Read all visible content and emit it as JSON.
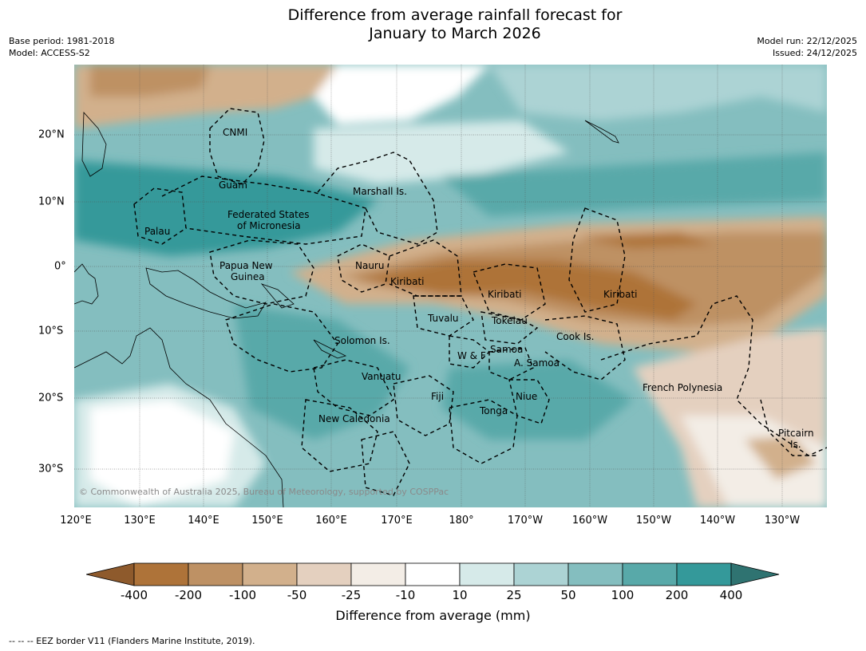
{
  "title_line1": "Difference from average rainfall forecast for",
  "title_line2": "January to March 2026",
  "base_period": "Base period: 1981-2018",
  "model": "Model: ACCESS-S2",
  "model_run": "Model run: 22/12/2025",
  "issued": "Issued: 24/12/2025",
  "lat_ticks": [
    "20°N",
    "10°N",
    "0°",
    "10°S",
    "20°S",
    "30°S"
  ],
  "lon_ticks": [
    "120°E",
    "130°E",
    "140°E",
    "150°E",
    "160°E",
    "170°E",
    "180°",
    "170°W",
    "160°W",
    "150°W",
    "140°W",
    "130°W"
  ],
  "places": {
    "cnmi": "CNMI",
    "guam": "Guam",
    "marshall": "Marshall Is.",
    "fsm_1": "Federated States",
    "fsm_2": "of Micronesia",
    "palau": "Palau",
    "png_1": "Papua New",
    "png_2": "Guinea",
    "nauru": "Nauru",
    "kiribati_w": "Kiribati",
    "kiribati_c": "Kiribati",
    "kiribati_e": "Kiribati",
    "tuvalu": "Tuvalu",
    "tokelau": "Tokelau",
    "cook": "Cook Is.",
    "solomon": "Solomon Is.",
    "wf": "W & F",
    "samoa": "Samoa",
    "asamoa": "A. Samoa",
    "vanuatu": "Vanuatu",
    "fiji": "Fiji",
    "niue": "Niue",
    "tonga": "Tonga",
    "newcal": "New Caledonia",
    "frpoly": "French Polynesia",
    "pitcairn_1": "Pitcairn",
    "pitcairn_2": "Is."
  },
  "copyright": "© Commonwealth of Australia 2025, Bureau of Meteorology, supported by COSPPac",
  "colorbar": {
    "labels": [
      "-400",
      "-200",
      "-100",
      "-50",
      "-25",
      "-10",
      "10",
      "25",
      "50",
      "100",
      "200",
      "400"
    ],
    "colors": [
      "#8e5a2c",
      "#ae7339",
      "#be9164",
      "#d2b08c",
      "#e4d0bf",
      "#f3ede6",
      "#ffffff",
      "#d6eae9",
      "#acd3d4",
      "#84bebf",
      "#58a9a9",
      "#34999a",
      "#2f7371"
    ],
    "title": "Difference from average (mm)"
  },
  "footer": "--  --  -- EEZ border V11 (Flanders Marine Institute, 2019)."
}
